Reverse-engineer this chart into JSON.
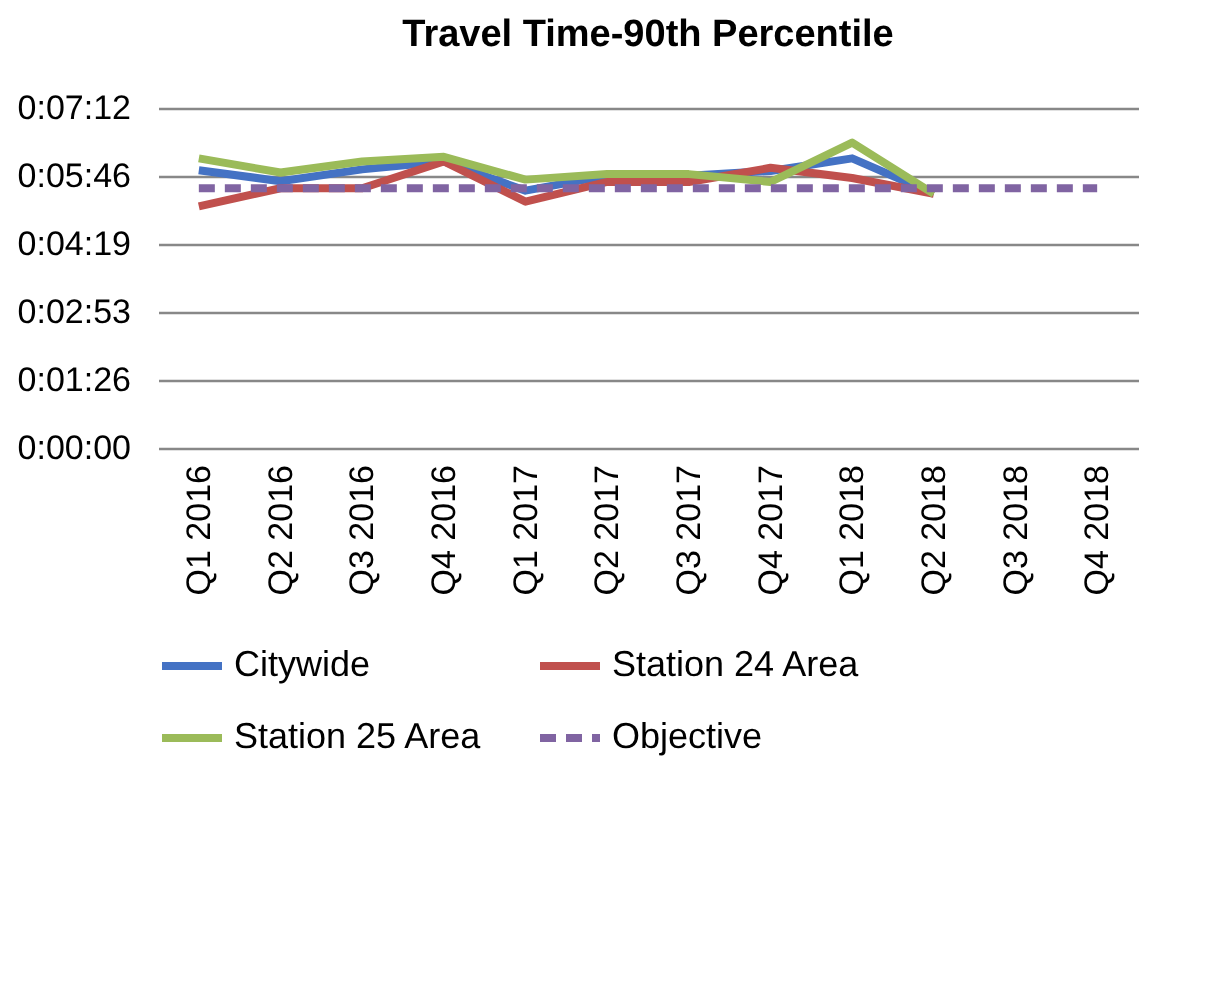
{
  "chart_data": {
    "type": "line",
    "title": "Travel Time-90th Percentile",
    "categories": [
      "Q1 2016",
      "Q2 2016",
      "Q3 2016",
      "Q4 2016",
      "Q1 2017",
      "Q2 2017",
      "Q3 2017",
      "Q4 2017",
      "Q1 2018",
      "Q2 2018",
      "Q3 2018",
      "Q4 2018"
    ],
    "series": [
      {
        "name": "Citywide",
        "color": "#4472c4",
        "values": [
          353,
          339,
          354,
          364,
          327,
          346,
          346,
          352,
          368,
          323,
          null,
          null
        ]
      },
      {
        "name": "Station 24 Area",
        "color": "#c0504d",
        "values": [
          307,
          330,
          330,
          364,
          313,
          338,
          338,
          356,
          343,
          323,
          null,
          null
        ]
      },
      {
        "name": "Station 25 Area",
        "color": "#9bbb59",
        "values": [
          368,
          350,
          364,
          370,
          341,
          348,
          348,
          338,
          388,
          323,
          null,
          null
        ]
      },
      {
        "name": "Objective",
        "color": "#8064a2",
        "line_style": "dashed",
        "values": [
          330,
          330,
          330,
          330,
          330,
          330,
          330,
          330,
          330,
          330,
          330,
          330
        ]
      }
    ],
    "ylim": [
      0,
      432
    ],
    "yticks": [
      {
        "value": 0,
        "label": "0:00:00"
      },
      {
        "value": 86.4,
        "label": "0:01:26"
      },
      {
        "value": 172.8,
        "label": "0:02:53"
      },
      {
        "value": 259.2,
        "label": "0:04:19"
      },
      {
        "value": 345.6,
        "label": "0:05:46"
      },
      {
        "value": 432,
        "label": "0:07:12"
      }
    ],
    "grid": "y",
    "legend": "bottom",
    "line_style": "solid",
    "marker": "none"
  }
}
